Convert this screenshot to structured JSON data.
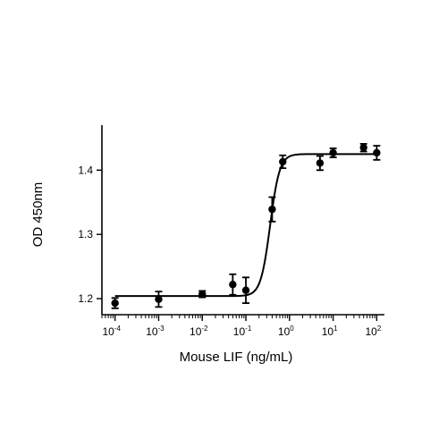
{
  "chart_data": {
    "type": "scatter",
    "title": "",
    "xlabel": "Mouse LIF (ng/mL)",
    "ylabel": "OD 450nm",
    "x_scale": "log",
    "xlim": [
      5e-05,
      150
    ],
    "ylim": [
      1.175,
      1.47
    ],
    "x_ticks": [
      {
        "value": 0.0001,
        "base": "10",
        "exp": "-4"
      },
      {
        "value": 0.001,
        "base": "10",
        "exp": "-3"
      },
      {
        "value": 0.01,
        "base": "10",
        "exp": "-2"
      },
      {
        "value": 0.1,
        "base": "10",
        "exp": "-1"
      },
      {
        "value": 1,
        "base": "10",
        "exp": "0"
      },
      {
        "value": 10,
        "base": "10",
        "exp": "1"
      },
      {
        "value": 100,
        "base": "10",
        "exp": "2"
      }
    ],
    "y_ticks": [
      {
        "value": 1.2,
        "label": "1.2"
      },
      {
        "value": 1.3,
        "label": "1.3"
      },
      {
        "value": 1.4,
        "label": "1.4"
      }
    ],
    "grid": false,
    "legend": "none",
    "marker_color": "#000000",
    "points": [
      {
        "x": 0.0001,
        "y": 1.193,
        "err": 0.008
      },
      {
        "x": 0.001,
        "y": 1.199,
        "err": 0.012
      },
      {
        "x": 0.01,
        "y": 1.207,
        "err": 0.005
      },
      {
        "x": 0.05,
        "y": 1.222,
        "err": 0.016
      },
      {
        "x": 0.1,
        "y": 1.213,
        "err": 0.02
      },
      {
        "x": 0.4,
        "y": 1.339,
        "err": 0.019
      },
      {
        "x": 0.7,
        "y": 1.413,
        "err": 0.01
      },
      {
        "x": 5,
        "y": 1.411,
        "err": 0.011
      },
      {
        "x": 10,
        "y": 1.427,
        "err": 0.007
      },
      {
        "x": 50,
        "y": 1.435,
        "err": 0.006
      },
      {
        "x": 100,
        "y": 1.427,
        "err": 0.011
      }
    ],
    "fit_curve": {
      "model": "4PL",
      "bottom": 1.204,
      "top": 1.425,
      "ec50": 0.36,
      "hill": 4
    }
  }
}
